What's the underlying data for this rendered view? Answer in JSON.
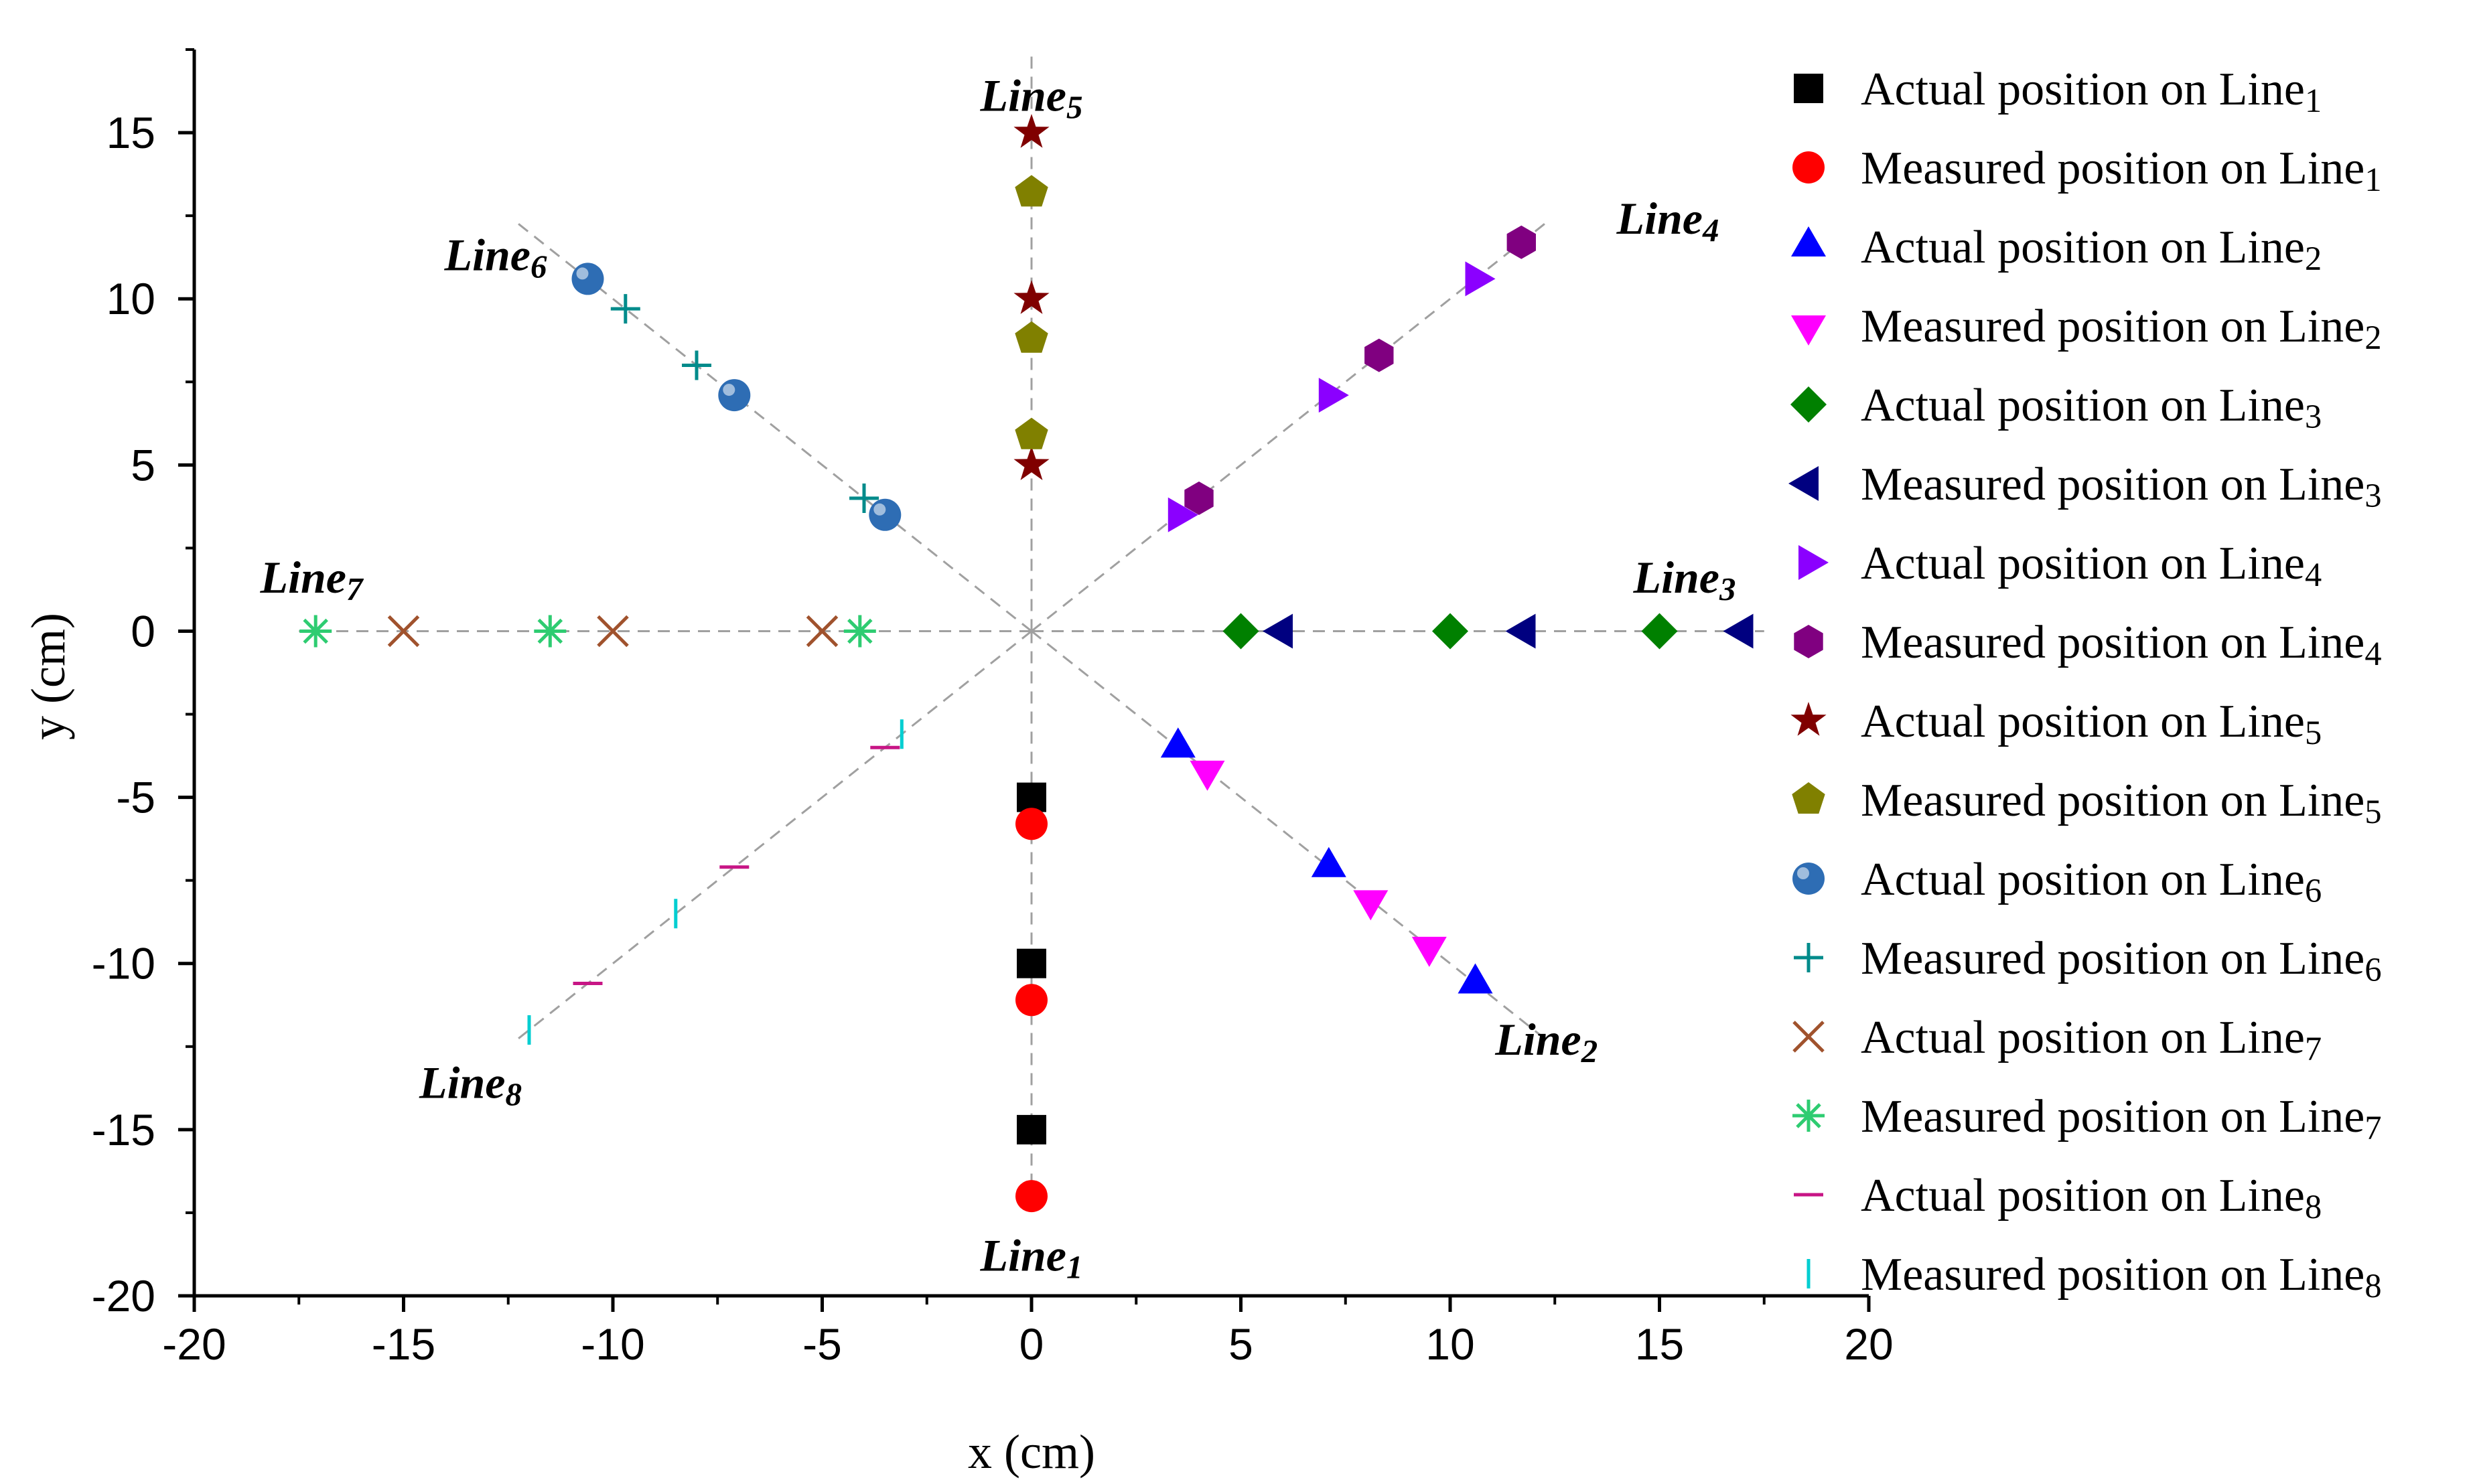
{
  "chart_data": {
    "type": "scatter",
    "title": "",
    "xlabel": "x (cm)",
    "ylabel": "y (cm)",
    "xlim": [
      -20,
      20
    ],
    "ylim": [
      -20,
      17.5
    ],
    "x_ticks": [
      -20,
      -15,
      -10,
      -5,
      0,
      5,
      10,
      15,
      20
    ],
    "y_ticks": [
      -20,
      -15,
      -10,
      -5,
      0,
      5,
      10,
      15
    ],
    "grid": false,
    "legend_position": "right",
    "guide_lines": [
      {
        "name": "Line1",
        "label": "Line",
        "sub": "1",
        "angle_deg": 270,
        "label_x": 0,
        "label_y": -18.8
      },
      {
        "name": "Line2",
        "label": "Line",
        "sub": "2",
        "angle_deg": 315,
        "label_x": 12.3,
        "label_y": -12.3
      },
      {
        "name": "Line3",
        "label": "Line",
        "sub": "3",
        "angle_deg": 0,
        "label_x": 15.6,
        "label_y": 1.6
      },
      {
        "name": "Line4",
        "label": "Line",
        "sub": "4",
        "angle_deg": 45,
        "label_x": 15.2,
        "label_y": 12.4
      },
      {
        "name": "Line5",
        "label": "Line",
        "sub": "5",
        "angle_deg": 90,
        "label_x": 0,
        "label_y": 16.1
      },
      {
        "name": "Line6",
        "label": "Line",
        "sub": "6",
        "angle_deg": 135,
        "label_x": -12.8,
        "label_y": 11.3
      },
      {
        "name": "Line7",
        "label": "Line",
        "sub": "7",
        "angle_deg": 180,
        "label_x": -17.2,
        "label_y": 1.6
      },
      {
        "name": "Line8",
        "label": "Line",
        "sub": "8",
        "angle_deg": 225,
        "label_x": -13.4,
        "label_y": -13.6
      }
    ],
    "series": [
      {
        "name": "Actual position on Line",
        "sub": "1",
        "marker": "square",
        "color": "#000000",
        "points": [
          [
            0,
            -5
          ],
          [
            0,
            -10
          ],
          [
            0,
            -15
          ]
        ]
      },
      {
        "name": "Measured position on Line",
        "sub": "1",
        "marker": "circle",
        "color": "#ff0000",
        "points": [
          [
            0,
            -5.8
          ],
          [
            0,
            -11.1
          ],
          [
            0,
            -17
          ]
        ]
      },
      {
        "name": "Actual position on Line",
        "sub": "2",
        "marker": "triangle-up",
        "color": "#0000ff",
        "points": [
          [
            3.5,
            -3.5
          ],
          [
            7.1,
            -7.1
          ],
          [
            10.6,
            -10.6
          ]
        ]
      },
      {
        "name": "Measured position on Line",
        "sub": "2",
        "marker": "triangle-down",
        "color": "#ff00ff",
        "points": [
          [
            4.2,
            -4.2
          ],
          [
            8.1,
            -8.1
          ],
          [
            9.5,
            -9.5
          ]
        ]
      },
      {
        "name": "Actual position on Line",
        "sub": "3",
        "marker": "diamond",
        "color": "#008000",
        "points": [
          [
            5,
            0
          ],
          [
            10,
            0
          ],
          [
            15,
            0
          ]
        ]
      },
      {
        "name": "Measured position on Line",
        "sub": "3",
        "marker": "triangle-left",
        "color": "#000080",
        "points": [
          [
            6,
            0
          ],
          [
            11.8,
            0
          ],
          [
            17,
            0
          ]
        ]
      },
      {
        "name": "Actual position on Line",
        "sub": "4",
        "marker": "triangle-right",
        "color": "#8b00ff",
        "points": [
          [
            3.5,
            3.5
          ],
          [
            7.1,
            7.1
          ],
          [
            10.6,
            10.6
          ]
        ]
      },
      {
        "name": "Measured position on Line",
        "sub": "4",
        "marker": "hexagon",
        "color": "#800080",
        "points": [
          [
            4,
            4
          ],
          [
            8.3,
            8.3
          ],
          [
            11.7,
            11.7
          ]
        ]
      },
      {
        "name": "Actual position on Line",
        "sub": "5",
        "marker": "star",
        "color": "#800000",
        "points": [
          [
            0,
            5
          ],
          [
            0,
            10
          ],
          [
            0,
            15
          ]
        ]
      },
      {
        "name": "Measured position on Line",
        "sub": "5",
        "marker": "pentagon",
        "color": "#808000",
        "points": [
          [
            0,
            5.9
          ],
          [
            0,
            8.8
          ],
          [
            0,
            13.2
          ]
        ]
      },
      {
        "name": "Actual position on Line",
        "sub": "6",
        "marker": "sphere",
        "color": "#2e6db4",
        "points": [
          [
            -3.5,
            3.5
          ],
          [
            -7.1,
            7.1
          ],
          [
            -10.6,
            10.6
          ]
        ]
      },
      {
        "name": "Measured position on Line",
        "sub": "6",
        "marker": "plus",
        "color": "#008b8b",
        "points": [
          [
            -4,
            4
          ],
          [
            -8,
            8
          ],
          [
            -9.7,
            9.7
          ]
        ]
      },
      {
        "name": "Actual position on Line",
        "sub": "7",
        "marker": "x",
        "color": "#a0522d",
        "points": [
          [
            -5,
            0
          ],
          [
            -10,
            0
          ],
          [
            -15,
            0
          ]
        ]
      },
      {
        "name": "Measured position on Line",
        "sub": "7",
        "marker": "asterisk",
        "color": "#2ecc71",
        "points": [
          [
            -4.1,
            0
          ],
          [
            -11.5,
            0
          ],
          [
            -17.1,
            0
          ]
        ]
      },
      {
        "name": "Actual position on Line",
        "sub": "8",
        "marker": "hline",
        "color": "#c71585",
        "points": [
          [
            -3.5,
            -3.5
          ],
          [
            -7.1,
            -7.1
          ],
          [
            -10.6,
            -10.6
          ]
        ]
      },
      {
        "name": "Measured position on Line",
        "sub": "8",
        "marker": "vline",
        "color": "#00ced1",
        "points": [
          [
            -3.1,
            -3.1
          ],
          [
            -8.5,
            -8.5
          ],
          [
            -12,
            -12
          ]
        ]
      }
    ]
  }
}
